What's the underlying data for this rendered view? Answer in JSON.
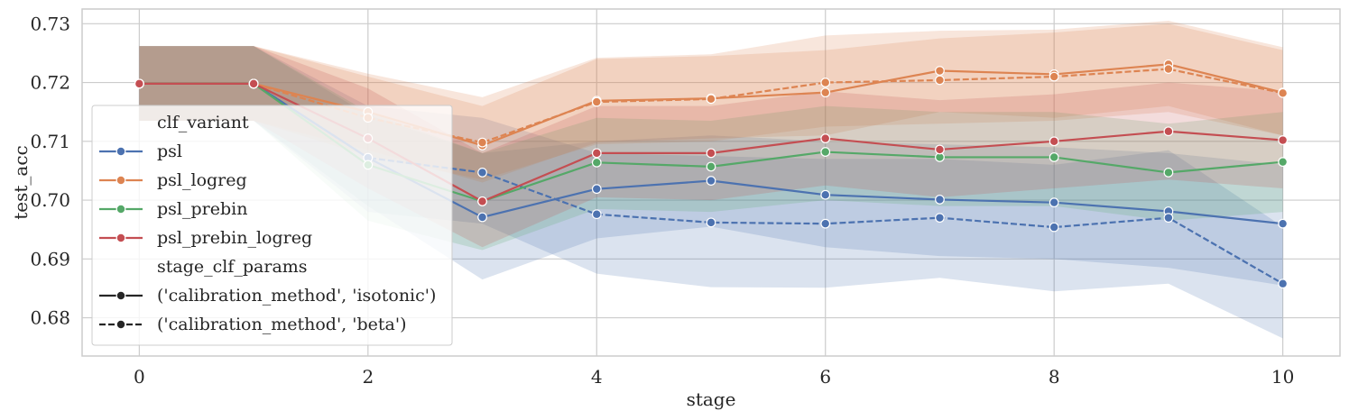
{
  "chart_data": {
    "type": "line",
    "xlabel": "stage",
    "ylabel": "test_acc",
    "xlim": [
      -0.5,
      10.5
    ],
    "ylim": [
      0.6735,
      0.7325
    ],
    "xticks": [
      0,
      2,
      4,
      6,
      8,
      10
    ],
    "yticks": [
      0.68,
      0.69,
      0.7,
      0.71,
      0.72,
      0.73
    ],
    "ytick_labels": [
      "0.68",
      "0.69",
      "0.70",
      "0.71",
      "0.72",
      "0.73"
    ],
    "xtick_labels": [
      "0",
      "2",
      "4",
      "6",
      "8",
      "10"
    ],
    "grid": true,
    "legend": {
      "placement": "center-left",
      "hue_title": "clf_variant",
      "style_title": "stage_clf_params",
      "style_entries": [
        {
          "label": "('calibration_method', 'isotonic')",
          "dash": "solid"
        },
        {
          "label": "('calibration_method', 'beta')",
          "dash": "dashed"
        }
      ]
    },
    "x": [
      0,
      1,
      2,
      3,
      4,
      5,
      6,
      7,
      8,
      9,
      10
    ],
    "series": [
      {
        "name": "psl",
        "color": "#4c72b0",
        "style": "isotonic",
        "values": [
          0.7198,
          0.7198,
          0.7072,
          0.6971,
          0.7019,
          0.7033,
          0.7009,
          0.7001,
          0.6996,
          0.6981,
          0.696
        ],
        "ci_low": [
          0.7135,
          0.7135,
          0.699,
          0.6865,
          0.6935,
          0.6955,
          0.692,
          0.6905,
          0.69,
          0.6885,
          0.6855
        ],
        "ci_high": [
          0.7262,
          0.7262,
          0.7145,
          0.708,
          0.71,
          0.711,
          0.71,
          0.7095,
          0.709,
          0.708,
          0.706
        ]
      },
      {
        "name": "psl",
        "color": "#4c72b0",
        "style": "beta",
        "values": [
          0.7198,
          0.7198,
          0.7072,
          0.7047,
          0.6976,
          0.6962,
          0.696,
          0.697,
          0.6954,
          0.697,
          0.6858
        ],
        "ci_low": [
          0.7135,
          0.7135,
          0.698,
          0.696,
          0.6875,
          0.6852,
          0.6851,
          0.6868,
          0.6845,
          0.6858,
          0.6765
        ],
        "ci_high": [
          0.7262,
          0.7262,
          0.716,
          0.714,
          0.708,
          0.7075,
          0.707,
          0.707,
          0.706,
          0.7085,
          0.6955
        ]
      },
      {
        "name": "psl_logreg",
        "color": "#dd8452",
        "style": "isotonic",
        "values": [
          0.7198,
          0.7198,
          0.715,
          0.7093,
          0.7169,
          0.7173,
          0.7183,
          0.722,
          0.7214,
          0.7231,
          0.7183
        ],
        "ci_low": [
          0.7135,
          0.7135,
          0.7085,
          0.703,
          0.7098,
          0.7105,
          0.711,
          0.715,
          0.714,
          0.716,
          0.711
        ],
        "ci_high": [
          0.7262,
          0.7262,
          0.721,
          0.716,
          0.724,
          0.7245,
          0.7255,
          0.7275,
          0.7285,
          0.73,
          0.7255
        ]
      },
      {
        "name": "psl_logreg",
        "color": "#dd8452",
        "style": "beta",
        "values": [
          0.7198,
          0.7198,
          0.714,
          0.7098,
          0.7167,
          0.7172,
          0.72,
          0.7204,
          0.721,
          0.7223,
          0.7182
        ],
        "ci_low": [
          0.7135,
          0.7135,
          0.7075,
          0.7035,
          0.7095,
          0.71,
          0.7125,
          0.713,
          0.7135,
          0.715,
          0.711
        ],
        "ci_high": [
          0.7262,
          0.7262,
          0.7215,
          0.7175,
          0.7242,
          0.7248,
          0.728,
          0.7288,
          0.729,
          0.7305,
          0.726
        ]
      },
      {
        "name": "psl_prebin",
        "color": "#55a868",
        "style": "isotonic",
        "values": [
          0.7198,
          0.7198,
          0.706,
          0.6998,
          0.7064,
          0.7057,
          0.7082,
          0.7073,
          0.7073,
          0.7047,
          0.7065
        ],
        "ci_low": [
          0.7135,
          0.7135,
          0.6965,
          0.6915,
          0.6985,
          0.698,
          0.7,
          0.699,
          0.699,
          0.6965,
          0.698
        ],
        "ci_high": [
          0.7262,
          0.7262,
          0.715,
          0.708,
          0.714,
          0.7135,
          0.716,
          0.715,
          0.715,
          0.713,
          0.715
        ]
      },
      {
        "name": "psl_prebin_logreg",
        "color": "#c44e52",
        "style": "isotonic",
        "values": [
          0.7198,
          0.7198,
          0.7105,
          0.6998,
          0.708,
          0.708,
          0.7105,
          0.7086,
          0.71,
          0.7117,
          0.7102
        ],
        "ci_low": [
          0.7135,
          0.7135,
          0.702,
          0.692,
          0.7005,
          0.7,
          0.7025,
          0.7005,
          0.702,
          0.7035,
          0.702
        ],
        "ci_high": [
          0.7262,
          0.7262,
          0.719,
          0.708,
          0.716,
          0.716,
          0.7185,
          0.717,
          0.718,
          0.72,
          0.7185
        ]
      }
    ]
  }
}
